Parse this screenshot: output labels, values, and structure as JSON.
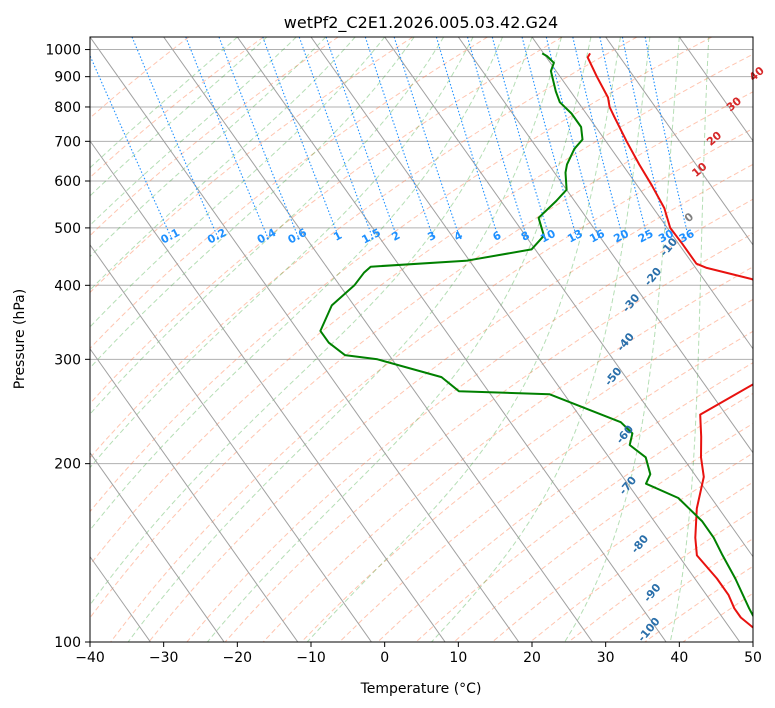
{
  "chart_data": {
    "type": "line",
    "subtype": "skew-t log-p",
    "title": "wetPf2_C2E1.2026.005.03.42.G24",
    "xlabel": "Temperature (°C)",
    "ylabel": "Pressure (hPa)",
    "xlim": [
      -40,
      50
    ],
    "ylim": [
      1050,
      100
    ],
    "x_ticks": [
      -40,
      -30,
      -20,
      -10,
      0,
      10,
      20,
      30,
      40,
      50
    ],
    "y_ticks": [
      100,
      200,
      300,
      400,
      500,
      600,
      700,
      800,
      900,
      1000
    ],
    "skew_degrees_per_log_decade": 57,
    "series": [
      {
        "name": "temperature",
        "color": "#e8120f",
        "points": [
          [
            26.3,
            985
          ],
          [
            25.6,
            970
          ],
          [
            25.0,
            900
          ],
          [
            24.5,
            830
          ],
          [
            23.8,
            800
          ],
          [
            23.5,
            770
          ],
          [
            22.8,
            700
          ],
          [
            22.3,
            640
          ],
          [
            22.0,
            590
          ],
          [
            21.5,
            540
          ],
          [
            20.4,
            500
          ],
          [
            20.5,
            470
          ],
          [
            20.5,
            435
          ],
          [
            21.5,
            428
          ],
          [
            26.5,
            410
          ],
          [
            30.5,
            385
          ],
          [
            31.8,
            365
          ],
          [
            30.0,
            340
          ],
          [
            25.0,
            310
          ],
          [
            19.0,
            280
          ],
          [
            12.0,
            258
          ],
          [
            6.5,
            242
          ],
          [
            4.5,
            222
          ],
          [
            2.5,
            205
          ],
          [
            1.0,
            190
          ],
          [
            -3.0,
            168
          ],
          [
            -6.0,
            150
          ],
          [
            -7.5,
            140
          ],
          [
            -7.0,
            128
          ],
          [
            -7.0,
            120
          ],
          [
            -7.5,
            114
          ],
          [
            -7.5,
            110
          ],
          [
            -6.5,
            104
          ],
          [
            -5.5,
            100
          ]
        ]
      },
      {
        "name": "dewpoint",
        "color": "#008000",
        "points": [
          [
            19.8,
            985
          ],
          [
            20.2,
            975
          ],
          [
            20.5,
            950
          ],
          [
            19.3,
            920
          ],
          [
            18.0,
            850
          ],
          [
            17.5,
            815
          ],
          [
            18.0,
            780
          ],
          [
            18.0,
            740
          ],
          [
            17.0,
            705
          ],
          [
            15.0,
            680
          ],
          [
            12.5,
            640
          ],
          [
            11.5,
            620
          ],
          [
            10.0,
            580
          ],
          [
            7.5,
            555
          ],
          [
            3.5,
            520
          ],
          [
            2.5,
            485
          ],
          [
            -0.5,
            460
          ],
          [
            -10.5,
            440
          ],
          [
            -24.0,
            430
          ],
          [
            -25.5,
            420
          ],
          [
            -28.0,
            400
          ],
          [
            -33.0,
            370
          ],
          [
            -37.0,
            335
          ],
          [
            -37.0,
            320
          ],
          [
            -36.0,
            305
          ],
          [
            -32.0,
            300
          ],
          [
            -25.0,
            280
          ],
          [
            -24.0,
            265
          ],
          [
            -12.0,
            262
          ],
          [
            -5.0,
            235
          ],
          [
            -4.5,
            225
          ],
          [
            -6.0,
            215
          ],
          [
            -5.0,
            205
          ],
          [
            -6.0,
            192
          ],
          [
            -7.5,
            185
          ],
          [
            -4.5,
            175
          ],
          [
            -3.5,
            160
          ],
          [
            -3.5,
            150
          ],
          [
            -4.0,
            140
          ],
          [
            -4.5,
            128
          ],
          [
            -5.5,
            114
          ],
          [
            -6.0,
            105
          ],
          [
            -6.0,
            100
          ]
        ]
      }
    ],
    "isotherms_c": [
      -130,
      -120,
      -110,
      -100,
      -90,
      -80,
      -70,
      -60,
      -50,
      -40,
      -30,
      -20,
      -10,
      0,
      10,
      20,
      30,
      40,
      50
    ],
    "dry_adiabats": {
      "color": "#ff7f50",
      "labels": [
        {
          "text": "0",
          "color": "#808080",
          "x": 24,
          "p": 515
        },
        {
          "text": "10",
          "color": "#d62728",
          "x": 30,
          "p": 620
        },
        {
          "text": "20",
          "color": "#d62728",
          "x": 35,
          "p": 700
        },
        {
          "text": "30",
          "color": "#d62728",
          "x": 41,
          "p": 800
        },
        {
          "text": "40",
          "color": "#d62728",
          "x": 47,
          "p": 900
        }
      ]
    },
    "moist_adiabats": {
      "color": "#2ca02c",
      "labels": [
        {
          "text": "-100",
          "x": -21,
          "p": 104
        },
        {
          "text": "-90",
          "x": -17,
          "p": 120
        },
        {
          "text": "-80",
          "x": -14,
          "p": 145
        },
        {
          "text": "-70",
          "x": -10,
          "p": 182
        },
        {
          "text": "-60",
          "x": -5.5,
          "p": 222
        },
        {
          "text": "-50",
          "x": -1.5,
          "p": 278
        },
        {
          "text": "-40",
          "x": 3.5,
          "p": 318
        },
        {
          "text": "-30",
          "x": 8,
          "p": 370
        },
        {
          "text": "-20",
          "x": 13.5,
          "p": 410
        },
        {
          "text": "-10",
          "x": 18.5,
          "p": 460
        }
      ]
    },
    "mixing_ratio_g_per_kg": {
      "color": "#1e90ff",
      "label_pressure_hpa": 475,
      "values": [
        0.1,
        0.2,
        0.4,
        0.6,
        1,
        1.5,
        2,
        3,
        4,
        6,
        8,
        10,
        13,
        16,
        20,
        25,
        30,
        36
      ],
      "labels": [
        "0.1",
        "0.2",
        "0.4",
        "0.6",
        "1",
        "1.5",
        "2",
        "3",
        "4",
        "6",
        "8",
        "10",
        "13",
        "16",
        "20",
        "25",
        "30",
        "36"
      ]
    },
    "grid": true
  }
}
